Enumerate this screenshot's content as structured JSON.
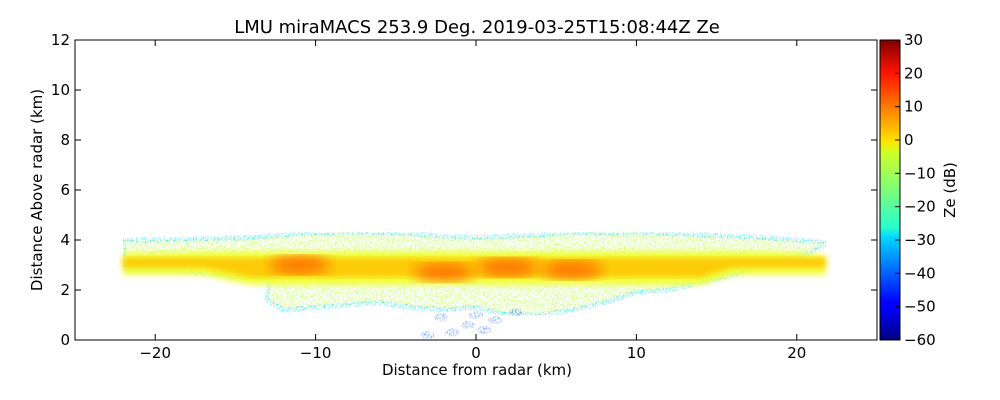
{
  "chart_data": {
    "type": "heatmap",
    "title": "LMU miraMACS 253.9 Deg. 2019-03-25T15:08:44Z  Ze",
    "xlabel": "Distance from radar (km)",
    "ylabel": "Distance Above radar  (km)",
    "xlim": [
      -25,
      25
    ],
    "ylim": [
      0,
      12
    ],
    "xticks": [
      -20,
      -10,
      0,
      10,
      20
    ],
    "xtick_labels": [
      "−20",
      "−10",
      "0",
      "10",
      "20"
    ],
    "yticks": [
      0,
      2,
      4,
      6,
      8,
      10,
      12
    ],
    "ytick_labels": [
      "0",
      "2",
      "4",
      "6",
      "8",
      "10",
      "12"
    ],
    "colorbar": {
      "label": "Ze (dB)",
      "range": [
        -60,
        30
      ],
      "ticks": [
        -60,
        -50,
        -40,
        -30,
        -20,
        -10,
        0,
        10,
        20,
        30
      ],
      "tick_labels": [
        "−60",
        "−50",
        "−40",
        "−30",
        "−20",
        "−10",
        "0",
        "10",
        "20",
        "30"
      ],
      "colormap": "jet"
    },
    "grid": false,
    "layer": {
      "upper_edge_km": [
        [
          -22,
          4.0
        ],
        [
          -20,
          4.0
        ],
        [
          -17,
          4.05
        ],
        [
          -14,
          4.1
        ],
        [
          -12,
          4.2
        ],
        [
          -10,
          4.3
        ],
        [
          -8,
          4.3
        ],
        [
          -6,
          4.3
        ],
        [
          -4,
          4.25
        ],
        [
          -2,
          4.15
        ],
        [
          0,
          4.1
        ],
        [
          2,
          4.15
        ],
        [
          4,
          4.2
        ],
        [
          6,
          4.3
        ],
        [
          8,
          4.3
        ],
        [
          10,
          4.3
        ],
        [
          12,
          4.25
        ],
        [
          14,
          4.2
        ],
        [
          16,
          4.15
        ],
        [
          18,
          4.1
        ],
        [
          20,
          4.0
        ],
        [
          21.8,
          3.9
        ]
      ],
      "lower_edge_km": [
        [
          21.8,
          3.8
        ],
        [
          20,
          3.3
        ],
        [
          18,
          3.0
        ],
        [
          16,
          2.6
        ],
        [
          14,
          2.3
        ],
        [
          12,
          2.0
        ],
        [
          10,
          1.9
        ],
        [
          8,
          1.5
        ],
        [
          6,
          1.2
        ],
        [
          4,
          1.0
        ],
        [
          2,
          1.0
        ],
        [
          0,
          1.3
        ],
        [
          -2,
          1.2
        ],
        [
          -4,
          1.3
        ],
        [
          -6,
          1.5
        ],
        [
          -8,
          1.4
        ],
        [
          -10,
          1.3
        ],
        [
          -12,
          1.2
        ],
        [
          -13,
          1.6
        ],
        [
          -13,
          2.4
        ],
        [
          -16,
          2.6
        ],
        [
          -19,
          2.8
        ],
        [
          -22,
          2.8
        ]
      ],
      "core_max_Ze_dB": 15,
      "core_centers_km": [
        [
          -11,
          3.0
        ],
        [
          -2,
          2.7
        ],
        [
          2,
          2.9
        ],
        [
          6,
          2.8
        ]
      ]
    }
  }
}
